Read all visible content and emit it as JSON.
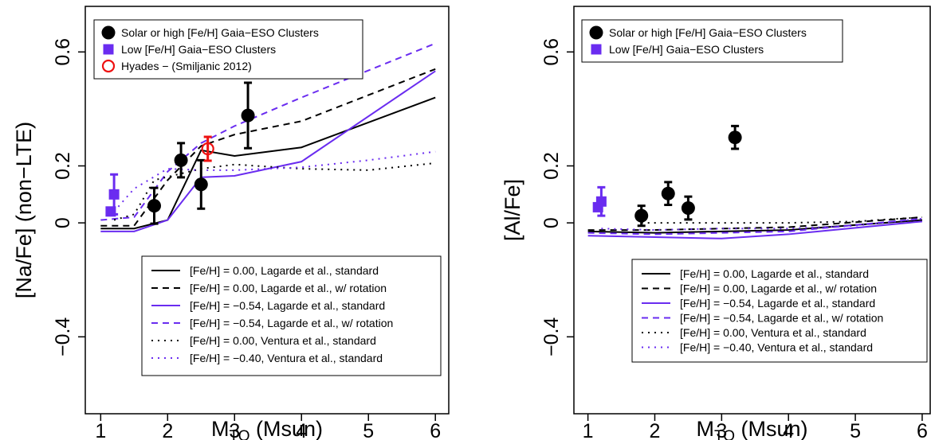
{
  "chart_data": [
    {
      "type": "scatter",
      "ylabel": "[Na/Fe] (non−LTE)",
      "xlabel_parts": [
        "M",
        "TO",
        " (Msun)"
      ],
      "xlim": [
        0.77,
        6.2
      ],
      "ylim": [
        -0.67,
        0.76
      ],
      "xticks": [
        1,
        2,
        3,
        4,
        5,
        6
      ],
      "yticks": [
        {
          "value": -0.4,
          "label": "−0.4"
        },
        0,
        0.2,
        0.6
      ],
      "points_legend": "upper left",
      "lines_legend": "lower right",
      "series": [
        {
          "name": "Solar or high [Fe/H] Gaia−ESO Clusters",
          "kind": "points",
          "marker": "circle",
          "color": "#000000",
          "x": [
            1.8,
            2.2,
            2.5,
            3.2
          ],
          "values": [
            0.06,
            0.22,
            0.135,
            0.377
          ],
          "errors": [
            0.063,
            0.06,
            0.085,
            0.115
          ]
        },
        {
          "name": "Low [Fe/H] Gaia−ESO Clusters",
          "kind": "points",
          "marker": "square",
          "color": "#6a2cf0",
          "x": [
            1.15,
            1.2
          ],
          "values": [
            0.04,
            0.1
          ],
          "errors": [
            null,
            0.07
          ]
        },
        {
          "name": "Hyades − (Smiljanic 2012)",
          "kind": "points",
          "marker": "open-circle",
          "color": "#ee1111",
          "x": [
            2.6
          ],
          "values": [
            0.26
          ],
          "errors": [
            0.042
          ]
        },
        {
          "name": "[Fe/H] = 0.00, Lagarde et al., standard",
          "kind": "line",
          "dash": "solid",
          "color": "#000000",
          "x": [
            1,
            1.5,
            2,
            2.5,
            3,
            4,
            6
          ],
          "values": [
            -0.02,
            -0.02,
            0.01,
            0.255,
            0.235,
            0.265,
            0.44
          ]
        },
        {
          "name": "[Fe/H] = 0.00, Lagarde et al., w/ rotation",
          "kind": "line",
          "dash": "dashed",
          "color": "#000000",
          "x": [
            1,
            1.5,
            2,
            2.5,
            3,
            4,
            6
          ],
          "values": [
            -0.01,
            -0.01,
            0.15,
            0.27,
            0.31,
            0.357,
            0.54
          ]
        },
        {
          "name": "[Fe/H] = −0.54, Lagarde et al., standard",
          "kind": "line",
          "dash": "solid",
          "color": "#6a2cf0",
          "x": [
            1,
            1.5,
            2,
            2.5,
            3,
            4,
            6
          ],
          "values": [
            -0.03,
            -0.03,
            0.01,
            0.16,
            0.165,
            0.215,
            0.533
          ]
        },
        {
          "name": "[Fe/H] = −0.54, Lagarde et al., w/ rotation",
          "kind": "line",
          "dash": "dashed",
          "color": "#6a2cf0",
          "x": [
            1,
            1.5,
            2,
            2.5,
            3,
            4,
            6
          ],
          "values": [
            0.01,
            0.02,
            0.18,
            0.28,
            0.34,
            0.44,
            0.63
          ]
        },
        {
          "name": "[Fe/H] = 0.00, Ventura et al., standard",
          "kind": "line",
          "dash": "dotted",
          "color": "#000000",
          "x": [
            1.2,
            1.5,
            1.8,
            2.5,
            3,
            4,
            5,
            6
          ],
          "values": [
            0.01,
            0.03,
            0.15,
            0.19,
            0.205,
            0.19,
            0.185,
            0.21
          ]
        },
        {
          "name": "[Fe/H] = −0.40, Ventura et al., standard",
          "kind": "line",
          "dash": "dotted",
          "color": "#6a2cf0",
          "x": [
            1.2,
            1.5,
            2,
            2.5,
            3,
            4,
            5,
            6
          ],
          "values": [
            0.04,
            0.12,
            0.19,
            0.185,
            0.185,
            0.195,
            0.22,
            0.25
          ]
        }
      ]
    },
    {
      "type": "scatter",
      "ylabel": "[Al/Fe]",
      "xlabel_parts": [
        "M",
        "TO",
        " (Msun)"
      ],
      "xlim": [
        0.79,
        6.12
      ],
      "ylim": [
        -0.67,
        0.76
      ],
      "xticks": [
        1,
        2,
        3,
        4,
        5,
        6
      ],
      "yticks": [
        {
          "value": -0.4,
          "label": "−0.4"
        },
        0,
        0.2,
        0.6
      ],
      "points_legend": "upper left",
      "lines_legend": "lower right",
      "series": [
        {
          "name": "Solar or high [Fe/H] Gaia−ESO Clusters",
          "kind": "points",
          "marker": "circle",
          "color": "#000000",
          "x": [
            1.8,
            2.2,
            2.5,
            3.2
          ],
          "values": [
            0.025,
            0.103,
            0.052,
            0.3
          ],
          "errors": [
            0.035,
            0.04,
            0.04,
            0.04
          ]
        },
        {
          "name": "Low [Fe/H] Gaia−ESO Clusters",
          "kind": "points",
          "marker": "square",
          "color": "#6a2cf0",
          "x": [
            1.15,
            1.2
          ],
          "values": [
            0.055,
            0.075
          ],
          "errors": [
            null,
            0.05
          ]
        },
        {
          "name": "[Fe/H] = 0.00, Lagarde et al., standard",
          "kind": "line",
          "dash": "solid",
          "color": "#000000",
          "x": [
            1,
            2,
            3,
            4,
            6
          ],
          "values": [
            -0.03,
            -0.035,
            -0.03,
            -0.025,
            0.01
          ]
        },
        {
          "name": "[Fe/H] = 0.00, Lagarde et al., w/ rotation",
          "kind": "line",
          "dash": "dashed",
          "color": "#000000",
          "x": [
            1,
            2,
            3,
            4,
            6
          ],
          "values": [
            -0.025,
            -0.025,
            -0.02,
            -0.015,
            0.02
          ]
        },
        {
          "name": "[Fe/H] = −0.54, Lagarde et al., standard",
          "kind": "line",
          "dash": "solid",
          "color": "#6a2cf0",
          "x": [
            1,
            2,
            3,
            4,
            6
          ],
          "values": [
            -0.045,
            -0.05,
            -0.055,
            -0.04,
            0.005
          ]
        },
        {
          "name": "[Fe/H] = −0.54, Lagarde et al., w/ rotation",
          "kind": "line",
          "dash": "dashed",
          "color": "#6a2cf0",
          "x": [
            1,
            2,
            3,
            4,
            6
          ],
          "values": [
            -0.035,
            -0.04,
            -0.035,
            -0.03,
            0.015
          ]
        },
        {
          "name": "[Fe/H] = 0.00, Ventura et al., standard",
          "kind": "line",
          "dash": "dotted",
          "color": "#000000",
          "x": [
            1.8,
            2.5,
            3,
            4,
            5,
            6
          ],
          "values": [
            0.0,
            0.0,
            0.0,
            0.0,
            0.005,
            0.02
          ]
        },
        {
          "name": "[Fe/H] = −0.40, Ventura et al., standard",
          "kind": "line",
          "dash": "dotted",
          "color": "#6a2cf0",
          "x": [
            1.2,
            2,
            3,
            4,
            5,
            6
          ],
          "values": [
            -0.02,
            -0.025,
            -0.02,
            -0.02,
            -0.01,
            0.015
          ]
        }
      ]
    }
  ]
}
